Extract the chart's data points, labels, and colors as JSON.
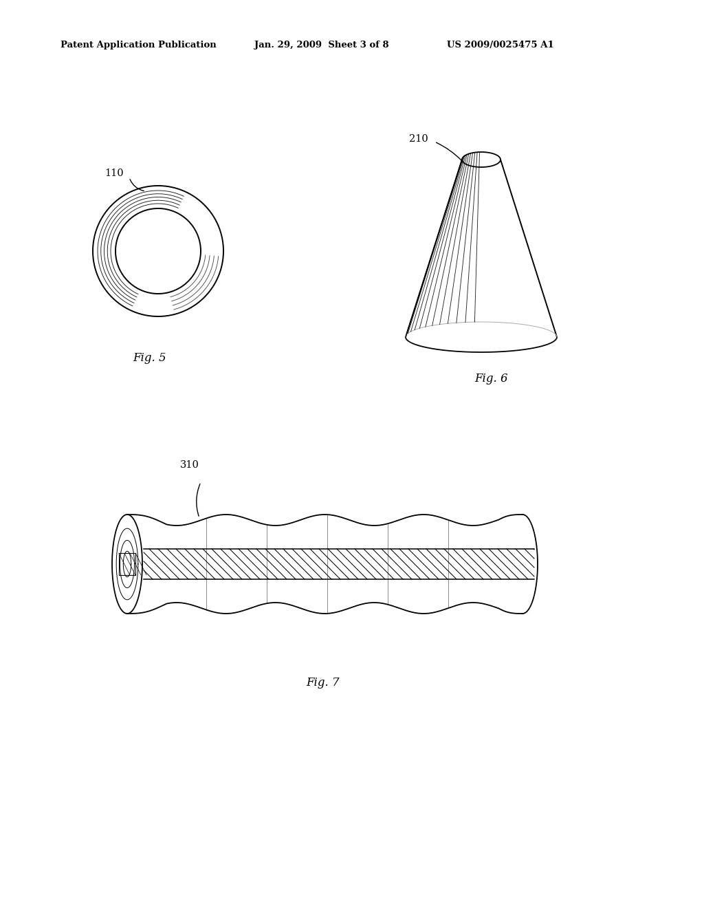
{
  "background_color": "#ffffff",
  "header_left": "Patent Application Publication",
  "header_center": "Jan. 29, 2009  Sheet 3 of 8",
  "header_right": "US 2009/0025475 A1",
  "fig5_label": "Fig. 5",
  "fig5_ref": "110",
  "fig6_label": "Fig. 6",
  "fig6_ref": "210",
  "fig7_label": "Fig. 7",
  "fig7_ref": "310",
  "line_color": "#000000",
  "text_color": "#000000"
}
